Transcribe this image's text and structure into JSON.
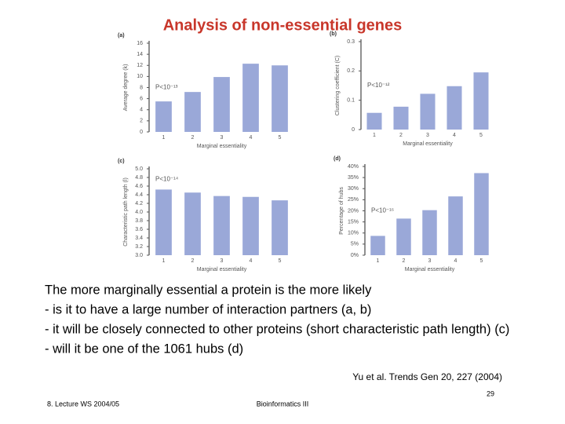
{
  "title": "Analysis of non-essential genes",
  "chart_data": [
    {
      "type": "bar",
      "panel": "(a)",
      "ylabel": "Average degree (k)",
      "xlabel": "Marginal essentiality",
      "annotation": "P<10⁻¹³",
      "categories": [
        "1",
        "2",
        "3",
        "4",
        "5"
      ],
      "values": [
        5.5,
        7.2,
        9.9,
        12.3,
        12.0
      ],
      "color": "#9aa8d8",
      "ylim": [
        0,
        16
      ],
      "yticks": [
        0,
        2,
        4,
        6,
        8,
        10,
        12,
        14,
        16
      ]
    },
    {
      "type": "bar",
      "panel": "(b)",
      "ylabel": "Clustering coefficient (C)",
      "xlabel": "Marginal essentiality",
      "annotation": "P<10⁻¹²",
      "categories": [
        "1",
        "2",
        "3",
        "4",
        "5"
      ],
      "values": [
        0.057,
        0.078,
        0.122,
        0.148,
        0.195
      ],
      "color": "#9aa8d8",
      "ylim": [
        0,
        0.3
      ],
      "yticks": [
        0,
        0.1,
        0.2,
        0.3
      ]
    },
    {
      "type": "bar",
      "panel": "(c)",
      "ylabel": "Characteristic path length (l)",
      "xlabel": "Marginal essentiality",
      "annotation": "P<10⁻¹⁴",
      "categories": [
        "1",
        "2",
        "3",
        "4",
        "5"
      ],
      "values": [
        4.52,
        4.45,
        4.37,
        4.35,
        4.27
      ],
      "color": "#9aa8d8",
      "ylim": [
        3.0,
        5.0
      ],
      "yticks": [
        {
          "value": 3.0,
          "label": "3.0"
        },
        3.2,
        3.4,
        3.6,
        3.8,
        {
          "value": 4.0,
          "label": "4.0"
        },
        4.2,
        4.4,
        4.6,
        4.8,
        {
          "value": 5.0,
          "label": "5.0"
        }
      ]
    },
    {
      "type": "bar",
      "panel": "(d)",
      "ylabel": "Percentage of hubs",
      "xlabel": "Marginal essentiality",
      "annotation": "P<10⁻¹⁶",
      "categories": [
        "1",
        "2",
        "3",
        "4",
        "5"
      ],
      "values": [
        8.7,
        16.5,
        20.3,
        26.5,
        37
      ],
      "color": "#9aa8d8",
      "ylim": [
        0,
        40
      ],
      "yticks": [
        {
          "value": 0,
          "label": "0%"
        },
        {
          "value": 5,
          "label": "5%"
        },
        {
          "value": 10,
          "label": "10%"
        },
        {
          "value": 15,
          "label": "15%"
        },
        {
          "value": 20,
          "label": "20%"
        },
        {
          "value": 25,
          "label": "25%"
        },
        {
          "value": 30,
          "label": "30%"
        },
        {
          "value": 35,
          "label": "35%"
        },
        {
          "value": 40,
          "label": "40%"
        }
      ]
    }
  ],
  "body": [
    "The more marginally essential a protein is the more likely",
    "- is it to have a large number of interaction partners (a, b)",
    "- it will be closely connected to other proteins (short characteristic path length) (c)",
    "- will it be one of the 1061 hubs (d)"
  ],
  "citation": "Yu et al. Trends Gen 20, 227 (2004)",
  "footer": {
    "left": "8. Lecture WS 2004/05",
    "center": "Bioinformatics III",
    "page": "29"
  }
}
